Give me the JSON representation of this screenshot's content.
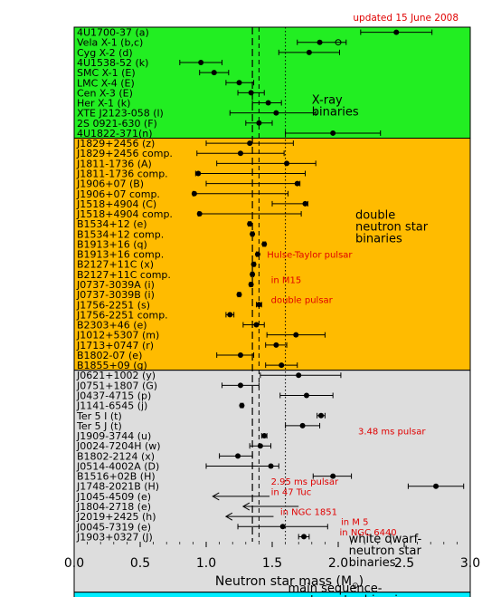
{
  "chart_data": {
    "type": "scatter",
    "note_top": "updated 15 June 2008",
    "xlabel": "Neutron star mass (M",
    "xlabel_sym": "⊙",
    "xlim": [
      0.0,
      3.0
    ],
    "xticks": [
      "0.0",
      "0.5",
      "1.0",
      "1.5",
      "2.0",
      "2.5",
      "3.0"
    ],
    "ref_lines": [
      {
        "x": 1.35,
        "style": "long-dash"
      },
      {
        "x": 1.4,
        "style": "dash"
      },
      {
        "x": 1.6,
        "style": "dot"
      }
    ],
    "panels": [
      {
        "name": "X-ray binaries",
        "color": "#22ee22",
        "label_lines": [
          "X-ray",
          "binaries"
        ],
        "label_x": 1.8,
        "label_row": 7.6,
        "start": 0,
        "end": 11
      },
      {
        "name": "double neutron star binaries",
        "color": "#ffbb00",
        "label_lines": [
          "double",
          "neutron star",
          "binaries"
        ],
        "label_x": 2.13,
        "label_row": 19.0,
        "start": 11,
        "end": 34
      },
      {
        "name": "white dwarf-neutron star binaries",
        "color": "#dddddd",
        "label_lines": [
          "white dwarf-",
          "neutron star",
          "binaries"
        ],
        "label_x": 2.08,
        "label_row": 51.1,
        "start": 34,
        "end": 56
      },
      {
        "name": "main sequence-neutron star binaries",
        "color": "#00eeff",
        "label_lines": [
          "main sequence-",
          "neutron star binaries"
        ],
        "label_x": 1.62,
        "label_row": 56.0,
        "start": 56,
        "end": 58
      }
    ],
    "stars": [
      {
        "label": "4U1700-37 (a)",
        "mass": 2.44,
        "lo": 2.17,
        "hi": 2.71
      },
      {
        "label": "Vela X-1 (b,c)",
        "mass": 1.86,
        "lo": 1.69,
        "hi": 2.06,
        "open": 2.0
      },
      {
        "label": "Cyg X-2 (d)",
        "mass": 1.78,
        "lo": 1.55,
        "hi": 2.01
      },
      {
        "label": "4U1538-52 (k)",
        "mass": 0.96,
        "lo": 0.8,
        "hi": 1.12
      },
      {
        "label": "SMC X-1 (E)",
        "mass": 1.06,
        "lo": 0.95,
        "hi": 1.17
      },
      {
        "label": "LMC X-4 (E)",
        "mass": 1.25,
        "lo": 1.15,
        "hi": 1.36
      },
      {
        "label": "Cen X-3 (E)",
        "mass": 1.34,
        "lo": 1.24,
        "hi": 1.44
      },
      {
        "label": "Her X-1 (k)",
        "mass": 1.47,
        "lo": 1.35,
        "hi": 1.57
      },
      {
        "label": "XTE J2123-058 (l)",
        "mass": 1.53,
        "lo": 1.18,
        "hi": 1.83
      },
      {
        "label": "2S 0921-630 (F)",
        "mass": 1.4,
        "lo": 1.3,
        "hi": 1.5
      },
      {
        "label": "4U1822-371(n)",
        "mass": 1.96,
        "lo": 1.6,
        "hi": 2.32
      },
      {
        "label": "J1829+2456 (z)",
        "mass": 1.33,
        "lo": 1.0,
        "hi": 1.66
      },
      {
        "label": "J1829+2456 comp.",
        "mass": 1.26,
        "lo": 0.93,
        "hi": 1.59
      },
      {
        "label": "J1811-1736 (A)",
        "mass": 1.61,
        "lo": 1.08,
        "hi": 1.83
      },
      {
        "label": "J1811-1736 comp.",
        "mass": 0.94,
        "lo": 0.92,
        "hi": 1.75
      },
      {
        "label": "J1906+07 (B)",
        "mass": 1.69,
        "lo": 1.0,
        "hi": 1.71
      },
      {
        "label": "J1906+07 comp.",
        "mass": 0.91,
        "lo": 0.9,
        "hi": 1.62
      },
      {
        "label": "J1518+4904 (C)",
        "mass": 1.75,
        "lo": 1.5,
        "hi": 1.77
      },
      {
        "label": "J1518+4904 comp.",
        "mass": 0.95,
        "lo": 0.94,
        "hi": 1.72
      },
      {
        "label": "B1534+12 (e)",
        "mass": 1.33,
        "lo": 1.32,
        "hi": 1.34
      },
      {
        "label": "B1534+12 comp.",
        "mass": 1.35,
        "lo": 1.34,
        "hi": 1.36
      },
      {
        "label": "B1913+16 (q)",
        "mass": 1.44,
        "lo": 1.43,
        "hi": 1.45
      },
      {
        "label": "B1913+16 comp.",
        "mass": 1.39,
        "lo": 1.38,
        "hi": 1.4
      },
      {
        "label": "B2127+11C (x)",
        "mass": 1.36,
        "lo": 1.35,
        "hi": 1.37
      },
      {
        "label": "B2127+11C comp.",
        "mass": 1.35,
        "lo": 1.34,
        "hi": 1.36
      },
      {
        "label": "J0737-3039A (i)",
        "mass": 1.34,
        "lo": 1.33,
        "hi": 1.35
      },
      {
        "label": "J0737-3039B (i)",
        "mass": 1.25,
        "lo": 1.24,
        "hi": 1.26
      },
      {
        "label": "J1756-2251 (s)",
        "mass": 1.4,
        "lo": 1.38,
        "hi": 1.42
      },
      {
        "label": "J1756-2251 comp.",
        "mass": 1.18,
        "lo": 1.15,
        "hi": 1.21
      },
      {
        "label": "B2303+46 (e)",
        "mass": 1.38,
        "lo": 1.28,
        "hi": 1.44
      },
      {
        "label": "J1012+5307 (m)",
        "mass": 1.68,
        "lo": 1.46,
        "hi": 1.9
      },
      {
        "label": "J1713+0747 (r)",
        "mass": 1.53,
        "lo": 1.45,
        "hi": 1.61
      },
      {
        "label": "B1802-07 (e)",
        "mass": 1.26,
        "lo": 1.08,
        "hi": 1.36
      },
      {
        "label": "B1855+09 (g)",
        "mass": 1.57,
        "lo": 1.45,
        "hi": 1.69
      },
      {
        "label": "J0621+1002 (y)",
        "mass": 1.7,
        "lo": 1.41,
        "hi": 2.02
      },
      {
        "label": "J0751+1807 (G)",
        "mass": 1.26,
        "lo": 1.12,
        "hi": 1.4
      },
      {
        "label": "J0437-4715 (p)",
        "mass": 1.76,
        "lo": 1.56,
        "hi": 1.96
      },
      {
        "label": "J1141-6545 (j)",
        "mass": 1.27,
        "lo": 1.26,
        "hi": 1.28
      },
      {
        "label": "Ter 5 I (t)",
        "mass": 1.87,
        "lo": 1.84,
        "hi": 1.9
      },
      {
        "label": "Ter 5 J (t)",
        "mass": 1.73,
        "lo": 1.6,
        "hi": 1.86
      },
      {
        "label": "J1909-3744 (u)",
        "mass": 1.44,
        "lo": 1.42,
        "hi": 1.46
      },
      {
        "label": "J0024-7204H (w)",
        "mass": 1.41,
        "lo": 1.33,
        "hi": 1.49
      },
      {
        "label": "B1802-2124 (x)",
        "mass": 1.24,
        "lo": 1.1,
        "hi": 1.35
      },
      {
        "label": "J0514-4002A (D)",
        "mass": 1.49,
        "lo": 1.0,
        "hi": 1.55
      },
      {
        "label": "B1516+02B (H)",
        "mass": 1.96,
        "lo": 1.81,
        "hi": 2.1
      },
      {
        "label": "J1748-2021B (H)",
        "mass": 2.74,
        "lo": 2.53,
        "hi": 2.95
      },
      {
        "label": "J1045-4509 (e)",
        "mass": 1.48,
        "upper": 1.05
      },
      {
        "label": "J1804-2718 (e)",
        "mass": 1.7,
        "upper": 1.28
      },
      {
        "label": "J2019+2425 (h)",
        "mass": 1.51,
        "upper": 1.15
      },
      {
        "label": "J0045-7319 (e)",
        "mass": 1.58,
        "lo": 1.24,
        "hi": 1.92
      },
      {
        "label": "J1903+0327 (J)",
        "mass": 1.74,
        "lo": 1.7,
        "hi": 1.78
      }
    ],
    "annotations": [
      {
        "text": "Hulse-Taylor pulsar",
        "x": 1.44,
        "row": 22.5
      },
      {
        "text": "in M15",
        "x": 1.47,
        "row": 25.0
      },
      {
        "text": "double pulsar",
        "x": 1.47,
        "row": 27.0
      },
      {
        "text": "3.48 ms pulsar",
        "x": 2.13,
        "row": 40.0
      },
      {
        "text": "2.95 ms pulsar",
        "x": 1.47,
        "row": 45.0
      },
      {
        "text": "in 47 Tuc",
        "x": 1.47,
        "row": 46.0
      },
      {
        "text": "in NGC 1851",
        "x": 1.54,
        "row": 48.0
      },
      {
        "text": "in M 5",
        "x": 2.0,
        "row": 49.0
      },
      {
        "text": "in NGC 6440",
        "x": 1.99,
        "row": 50.0
      }
    ]
  }
}
